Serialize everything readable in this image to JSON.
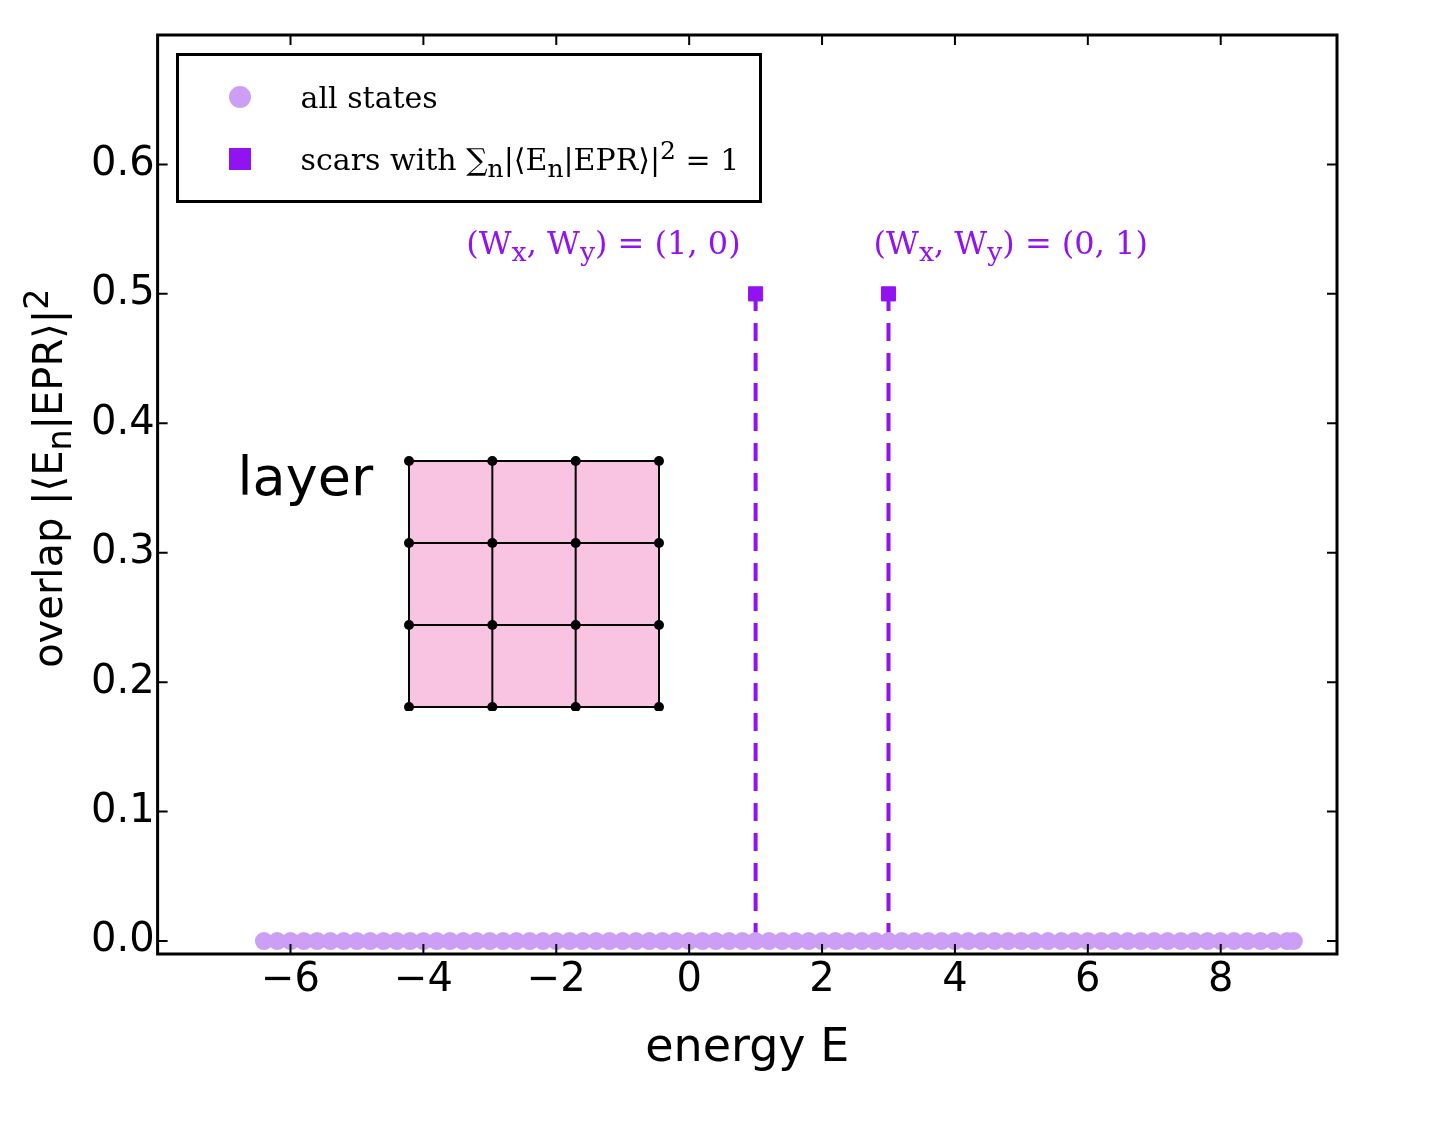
{
  "chart_data": {
    "type": "scatter",
    "xlabel": "energy E",
    "ylabel": "overlap |⟨E$_{n}$|EPR⟩|$^{2}$",
    "xlim": [
      -8,
      9.75
    ],
    "ylim": [
      -0.01,
      0.7
    ],
    "xticks": [
      -6,
      -4,
      -2,
      0,
      2,
      4,
      6,
      8
    ],
    "yticks": [
      {
        "value": 0,
        "label": "0.0"
      },
      {
        "value": 0.1,
        "label": "0.1"
      },
      {
        "value": 0.2,
        "label": "0.2"
      },
      {
        "value": 0.3,
        "label": "0.3"
      },
      {
        "value": 0.4,
        "label": "0.4"
      },
      {
        "value": 0.5,
        "label": "0.5"
      },
      {
        "value": 0.6,
        "label": "0.6"
      }
    ],
    "grid": false,
    "legend": "top left",
    "series": [
      {
        "name": "all states",
        "marker": "circle",
        "color": "#cc9ef5",
        "x": [
          -6.4,
          -6.2,
          -6,
          -5.8,
          -5.6,
          -5.4,
          -5.2,
          -5,
          -4.8,
          -4.6,
          -4.4,
          -4.2,
          -4,
          -3.8,
          -3.6,
          -3.4,
          -3.2,
          -3,
          -2.8,
          -2.6,
          -2.4,
          -2.2,
          -2,
          -1.8,
          -1.6,
          -1.4,
          -1.2,
          -1,
          -0.8,
          -0.6,
          -0.4,
          -0.2,
          0,
          0.2,
          0.4,
          0.6,
          0.8,
          1,
          1.2,
          1.4,
          1.6,
          1.8,
          2,
          2.2,
          2.4,
          2.6,
          2.8,
          3,
          3.2,
          3.4,
          3.6,
          3.8,
          4,
          4.2,
          4.4,
          4.6,
          4.8,
          5,
          5.2,
          5.4,
          5.6,
          5.8,
          6,
          6.2,
          6.4,
          6.6,
          6.8,
          7,
          7.2,
          7.4,
          7.6,
          7.8,
          8,
          8.2,
          8.4,
          8.6,
          8.8,
          9,
          9.1
        ],
        "values": [
          0,
          0,
          0,
          0,
          0,
          0,
          0,
          0,
          0,
          0,
          0,
          0,
          0,
          0,
          0,
          0,
          0,
          0,
          0,
          0,
          0,
          0,
          0,
          0,
          0,
          0,
          0,
          0,
          0,
          0,
          0,
          0,
          0,
          0,
          0,
          0,
          0,
          0,
          0,
          0,
          0,
          0,
          0,
          0,
          0,
          0,
          0,
          0,
          0,
          0,
          0,
          0,
          0,
          0,
          0,
          0,
          0,
          0,
          0,
          0,
          0,
          0,
          0,
          0,
          0,
          0,
          0,
          0,
          0,
          0,
          0,
          0,
          0,
          0,
          0,
          0,
          0,
          0,
          0
        ]
      },
      {
        "name": "scars with ∑$_{n}$|⟨E$_{n}$|EPR⟩|$^{2}$ = 1",
        "type": "lollipop",
        "marker": "square",
        "line_style": "dashed",
        "color": "#9013f0",
        "x": [
          1,
          3
        ],
        "values": [
          0.5,
          0.5
        ]
      }
    ],
    "annotations": [
      {
        "text": "(W$_{x}$, W$_{y}$) = (1, 0)",
        "x": 1,
        "y": 0.5
      },
      {
        "text": "(W$_{x}$, W$_{y}$) = (0, 1)",
        "x": 3,
        "y": 0.5
      },
      "layer"
    ]
  }
}
